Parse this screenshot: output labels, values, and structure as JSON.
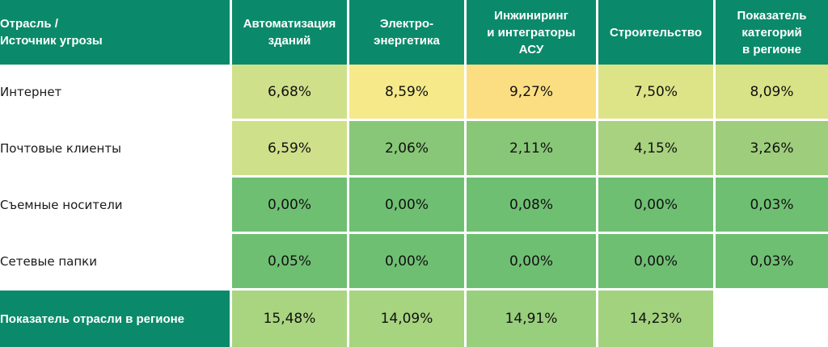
{
  "chart_data": {
    "type": "heatmap",
    "corner_header": [
      "Отрасль /",
      "Источник угрозы"
    ],
    "columns": [
      {
        "lines": [
          "Автоматизация",
          "зданий"
        ]
      },
      {
        "lines": [
          "Электро-",
          "энергетика"
        ]
      },
      {
        "lines": [
          "Инжиниринг",
          "и интеграторы",
          "АСУ"
        ]
      },
      {
        "lines": [
          "Строительство"
        ]
      },
      {
        "lines": [
          "Показатель",
          "категорий",
          "в регионе"
        ]
      }
    ],
    "rows": [
      {
        "label": "Интернет",
        "values": [
          "6,68%",
          "8,59%",
          "9,27%",
          "7,50%",
          "8,09%"
        ]
      },
      {
        "label": "Почтовые клиенты",
        "values": [
          "6,59%",
          "2,06%",
          "2,11%",
          "4,15%",
          "3,26%"
        ]
      },
      {
        "label": "Съемные носители",
        "values": [
          "0,00%",
          "0,00%",
          "0,08%",
          "0,00%",
          "0,03%"
        ]
      },
      {
        "label": "Сетевые папки",
        "values": [
          "0,05%",
          "0,00%",
          "0,00%",
          "0,00%",
          "0,03%"
        ]
      }
    ],
    "footer": {
      "label": "Показатель отрасли в регионе",
      "values": [
        "15,48%",
        "14,09%",
        "14,91%",
        "14,23%",
        ""
      ]
    },
    "colors": {
      "header_bg": "#0b8a6b",
      "cells": [
        [
          "#cfe08a",
          "#f5e98a",
          "#fcde82",
          "#dde487",
          "#d8e286"
        ],
        [
          "#cfe08a",
          "#88c777",
          "#88c777",
          "#a8d27f",
          "#9ecd7c"
        ],
        [
          "#6fbf73",
          "#6fbf73",
          "#6fbf73",
          "#6fbf73",
          "#6fbf73"
        ],
        [
          "#6fbf73",
          "#6fbf73",
          "#6fbf73",
          "#6fbf73",
          "#6fbf73"
        ]
      ],
      "footer_cells": [
        "#a9d580",
        "#a6d47f",
        "#98cf7c",
        "#a2d27e",
        "#ffffff"
      ]
    }
  }
}
